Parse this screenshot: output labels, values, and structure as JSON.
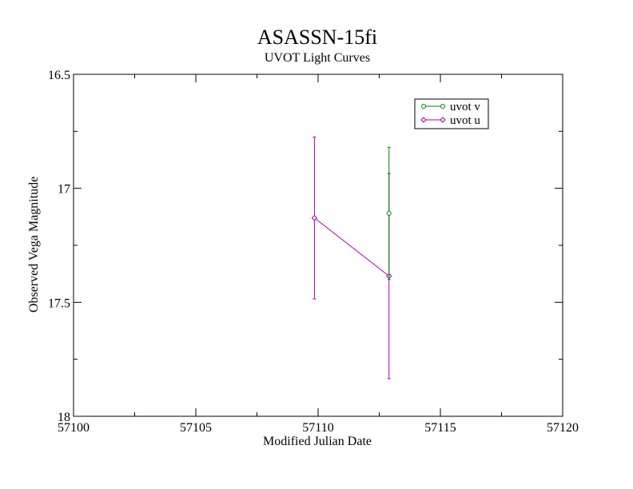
{
  "chart_data": {
    "type": "line",
    "title": "ASASSN-15fi",
    "subtitle": "UVOT Light Curves",
    "xlabel": "Modified Julian Date",
    "ylabel": "Observed Vega Magnitude",
    "xlim": [
      57100,
      57120
    ],
    "ylim": [
      18,
      16.5
    ],
    "y_inverted": true,
    "xticks": [
      57100,
      57105,
      57110,
      57115,
      57120
    ],
    "xtick_labels": [
      "57100",
      "57105",
      "57110",
      "57115",
      "57120"
    ],
    "yticks": [
      16.5,
      17,
      17.5,
      18
    ],
    "ytick_labels": [
      "16.5",
      "17",
      "17.5",
      "18"
    ],
    "legend_position": "top-right",
    "series": [
      {
        "name": "uvot v",
        "color": "#008000",
        "marker": "circle",
        "x": [
          57112.9
        ],
        "y": [
          17.11
        ],
        "yerr": [
          0.29
        ]
      },
      {
        "name": "uvot u",
        "color": "#aa00aa",
        "marker": "diamond",
        "x": [
          57109.85,
          57112.9
        ],
        "y": [
          17.13,
          17.385
        ],
        "yerr": [
          0.355,
          0.45
        ]
      }
    ]
  }
}
